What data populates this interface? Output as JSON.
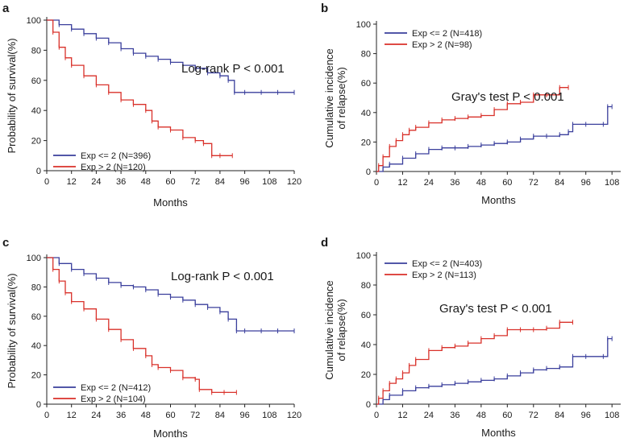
{
  "figure": "Kaplan-Meier survival and cumulative relapse incidence curves by Exp group",
  "colors": {
    "low": "#3a3f9c",
    "high": "#d9312a",
    "axis": "#222222"
  },
  "chart_data": [
    {
      "id": "a",
      "letter": "a",
      "type": "line",
      "kind": "survival",
      "xlabel": "Months",
      "ylabel": "Probability of survival(%)",
      "xlim": [
        0,
        120
      ],
      "ylim": [
        0,
        100
      ],
      "xticks": [
        0,
        12,
        24,
        36,
        48,
        60,
        72,
        84,
        96,
        108,
        120
      ],
      "yticks": [
        0,
        20,
        40,
        60,
        80,
        100
      ],
      "stat_text": "Log-rank P < 0.001",
      "legend_position": "bottom-left",
      "series": [
        {
          "name": "Exp <= 2 (N=396)",
          "color": "#3a3f9c",
          "x": [
            0,
            6,
            12,
            18,
            24,
            30,
            36,
            42,
            48,
            54,
            60,
            66,
            72,
            78,
            84,
            88,
            91,
            96,
            104,
            112,
            120
          ],
          "y": [
            100,
            97,
            94,
            91,
            88,
            85,
            81,
            78,
            76,
            74,
            72,
            70,
            68,
            65,
            63,
            60,
            52,
            52,
            52,
            52,
            52
          ]
        },
        {
          "name": "Exp > 2 (N=120)",
          "color": "#d9312a",
          "x": [
            0,
            3,
            6,
            9,
            12,
            18,
            24,
            30,
            36,
            42,
            48,
            51,
            54,
            60,
            66,
            72,
            76,
            80,
            84,
            90
          ],
          "y": [
            100,
            92,
            82,
            75,
            70,
            63,
            57,
            52,
            47,
            44,
            40,
            33,
            29,
            27,
            22,
            20,
            18,
            10,
            10,
            10
          ]
        }
      ]
    },
    {
      "id": "b",
      "letter": "b",
      "type": "line",
      "kind": "incidence",
      "xlabel": "Months",
      "ylabel": "Cumulative incidence of relapse(%)",
      "ylabel_lines": [
        "Cumulative incidence",
        "of relapse(%)"
      ],
      "xlim": [
        0,
        112
      ],
      "ylim": [
        0,
        100
      ],
      "xticks": [
        0,
        12,
        24,
        36,
        48,
        60,
        72,
        84,
        96,
        108
      ],
      "yticks": [
        0,
        20,
        40,
        60,
        80,
        100
      ],
      "stat_text": "Gray's test P < 0.001",
      "legend_position": "top-left",
      "series": [
        {
          "name": "Exp <= 2 (N=418)",
          "color": "#3a3f9c",
          "x": [
            0,
            3,
            6,
            12,
            18,
            24,
            30,
            36,
            42,
            48,
            54,
            60,
            66,
            72,
            78,
            84,
            88,
            90,
            96,
            104,
            106,
            108
          ],
          "y": [
            0,
            3,
            5,
            9,
            12,
            15,
            16,
            16,
            17,
            18,
            19,
            20,
            22,
            24,
            24,
            25,
            27,
            32,
            32,
            32,
            44,
            44
          ]
        },
        {
          "name": "Exp > 2 (N=98)",
          "color": "#d9312a",
          "x": [
            0,
            1,
            3,
            6,
            9,
            12,
            15,
            18,
            24,
            30,
            36,
            42,
            48,
            54,
            60,
            66,
            72,
            78,
            84,
            88
          ],
          "y": [
            0,
            4,
            10,
            17,
            21,
            25,
            28,
            30,
            33,
            35,
            36,
            37,
            38,
            42,
            46,
            47,
            52,
            52,
            57,
            57
          ]
        }
      ]
    },
    {
      "id": "c",
      "letter": "c",
      "type": "line",
      "kind": "survival",
      "xlabel": "Months",
      "ylabel": "Probability of survival(%)",
      "xlim": [
        0,
        120
      ],
      "ylim": [
        0,
        100
      ],
      "xticks": [
        0,
        12,
        24,
        36,
        48,
        60,
        72,
        84,
        96,
        108,
        120
      ],
      "yticks": [
        0,
        20,
        40,
        60,
        80,
        100
      ],
      "stat_text": "Log-rank P < 0.001",
      "legend_position": "bottom-left",
      "series": [
        {
          "name": "Exp <= 2 (N=412)",
          "color": "#3a3f9c",
          "x": [
            0,
            6,
            12,
            18,
            24,
            30,
            36,
            42,
            48,
            54,
            60,
            66,
            72,
            78,
            84,
            88,
            92,
            96,
            104,
            112,
            120
          ],
          "y": [
            100,
            96,
            92,
            89,
            86,
            83,
            81,
            80,
            78,
            75,
            73,
            71,
            68,
            66,
            63,
            58,
            50,
            50,
            50,
            50,
            50
          ]
        },
        {
          "name": "Exp > 2 (N=104)",
          "color": "#d9312a",
          "x": [
            0,
            3,
            6,
            9,
            12,
            18,
            24,
            30,
            36,
            42,
            48,
            51,
            54,
            60,
            66,
            72,
            74,
            80,
            86,
            92
          ],
          "y": [
            100,
            92,
            84,
            76,
            70,
            65,
            58,
            51,
            44,
            38,
            33,
            27,
            25,
            23,
            18,
            17,
            10,
            8,
            8,
            8
          ]
        }
      ]
    },
    {
      "id": "d",
      "letter": "d",
      "type": "line",
      "kind": "incidence",
      "xlabel": "Months",
      "ylabel": "Cumulative incidence of relapse(%)",
      "ylabel_lines": [
        "Cumulative incidence",
        "of relapse(%)"
      ],
      "xlim": [
        0,
        112
      ],
      "ylim": [
        0,
        100
      ],
      "xticks": [
        0,
        12,
        24,
        36,
        48,
        60,
        72,
        84,
        96,
        108
      ],
      "yticks": [
        0,
        20,
        40,
        60,
        80,
        100
      ],
      "stat_text": "Gray's test P < 0.001",
      "legend_position": "top-left",
      "series": [
        {
          "name": "Exp <= 2 (N=403)",
          "color": "#3a3f9c",
          "x": [
            0,
            3,
            6,
            12,
            18,
            24,
            30,
            36,
            42,
            48,
            54,
            60,
            66,
            72,
            78,
            84,
            90,
            96,
            104,
            106,
            108
          ],
          "y": [
            0,
            3,
            6,
            9,
            11,
            12,
            13,
            14,
            15,
            16,
            17,
            19,
            21,
            23,
            24,
            25,
            32,
            32,
            32,
            44,
            44
          ]
        },
        {
          "name": "Exp > 2 (N=113)",
          "color": "#d9312a",
          "x": [
            0,
            1,
            3,
            6,
            9,
            12,
            15,
            18,
            24,
            30,
            36,
            42,
            48,
            54,
            60,
            66,
            72,
            78,
            84,
            90
          ],
          "y": [
            0,
            4,
            9,
            14,
            17,
            21,
            26,
            30,
            36,
            38,
            39,
            41,
            44,
            46,
            50,
            50,
            50,
            51,
            55,
            55
          ]
        }
      ]
    }
  ]
}
